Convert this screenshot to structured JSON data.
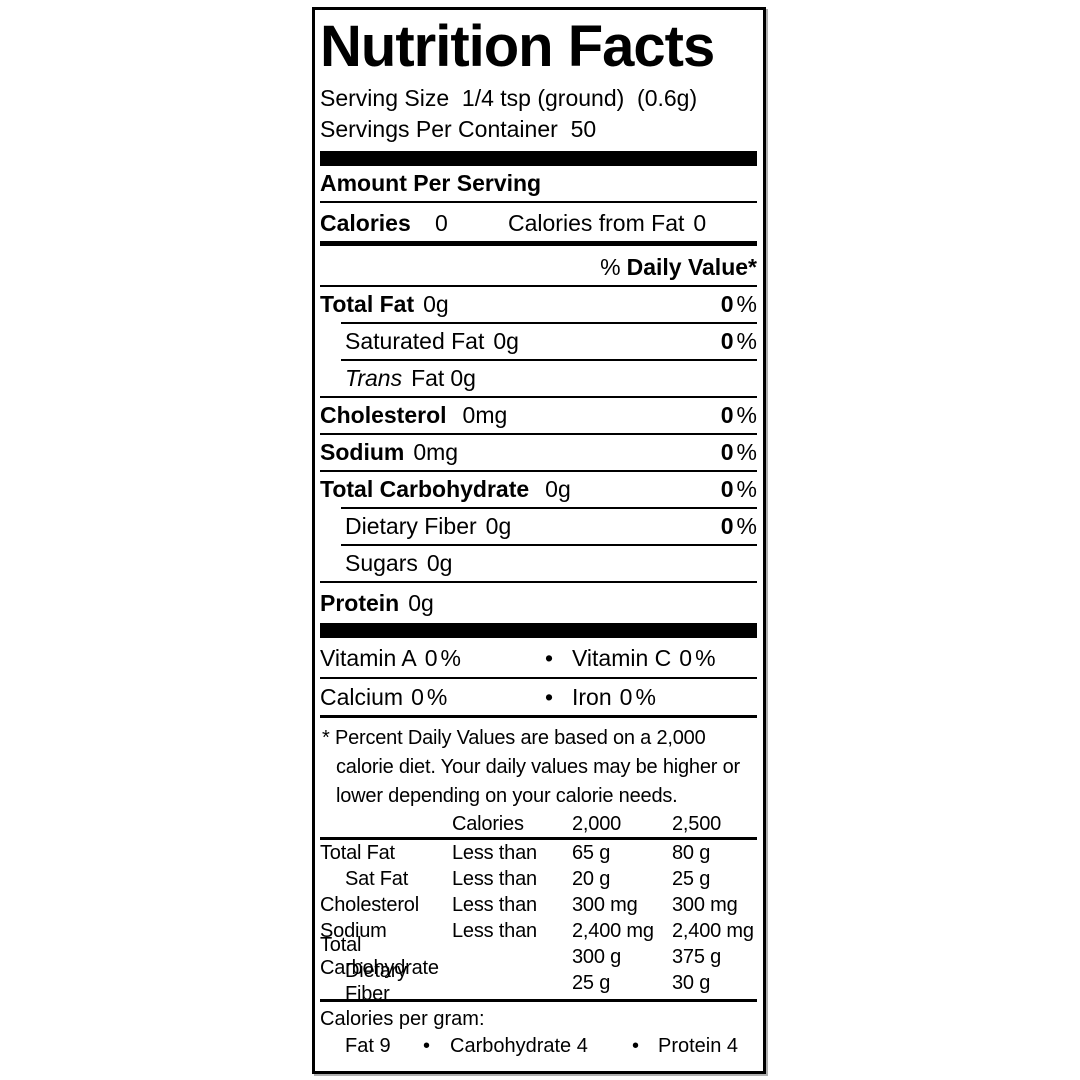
{
  "label": {
    "title": "Nutrition Facts",
    "serving": {
      "line1": "Serving Size  1/4 tsp (ground)  (0.6g)",
      "line2": "Servings Per Container  50"
    },
    "amount_per_serving": "Amount Per Serving",
    "calories": {
      "label": "Calories",
      "value": "0",
      "from_fat_label": "Calories from Fat",
      "from_fat_value": "0"
    },
    "daily_value_header": "Daily Value*",
    "nutrients": [
      {
        "name": "Total Fat",
        "amount": "0g",
        "dv": "0"
      },
      {
        "name": "Saturated Fat",
        "amount": "0g",
        "dv": "0"
      },
      {
        "name_italic": "Trans",
        "name_rest": "Fat",
        "amount": "0g"
      },
      {
        "name": "Cholesterol",
        "amount": "0mg",
        "dv": "0"
      },
      {
        "name": "Sodium",
        "amount": "0mg",
        "dv": "0"
      },
      {
        "name": "Total Carbohydrate",
        "amount": "0g",
        "dv": "0"
      },
      {
        "name": "Dietary Fiber",
        "amount": "0g",
        "dv": "0"
      },
      {
        "name": "Sugars",
        "amount": "0g"
      },
      {
        "name": "Protein",
        "amount": "0g"
      }
    ],
    "vitamins": [
      {
        "left": "Vitamin A",
        "left_value": "0",
        "right": "Vitamin C",
        "right_value": "0"
      },
      {
        "left": "Calcium",
        "left_value": "0",
        "right": "Iron",
        "right_value": "0"
      }
    ],
    "footnote": "* Percent Daily Values are based on a 2,000 calorie diet. Your daily values may be higher or lower depending on your calorie needs.",
    "dv_table": {
      "header": {
        "col1": "Calories",
        "col2000": "2,000",
        "col2500": "2,500"
      },
      "rows": [
        {
          "label": "Total Fat",
          "qualifier": "Less than",
          "v2000": "65 g",
          "v2500": "80 g"
        },
        {
          "label": "Sat Fat",
          "qualifier": "Less than",
          "v2000": "20 g",
          "v2500": "25 g"
        },
        {
          "label": "Cholesterol",
          "qualifier": "Less than",
          "v2000": "300 mg",
          "v2500": "300 mg"
        },
        {
          "label": "Sodium",
          "qualifier": "Less than",
          "v2000": "2,400 mg",
          "v2500": "2,400 mg"
        },
        {
          "label": "Total Carbohydrate",
          "qualifier": "",
          "v2000": "300 g",
          "v2500": "375 g"
        },
        {
          "label": "Dietary Fiber",
          "qualifier": "",
          "v2000": "25 g",
          "v2500": "30 g"
        }
      ]
    },
    "calories_per_gram": {
      "label": "Calories per gram:",
      "items": [
        "Fat 9",
        "Carbohydrate 4",
        "Protein 4"
      ]
    },
    "symbols": {
      "percent": "%",
      "bullet": "•"
    }
  },
  "colors": {
    "ink": "#000000",
    "background": "#ffffff",
    "shadow": "#b0b0b0"
  }
}
